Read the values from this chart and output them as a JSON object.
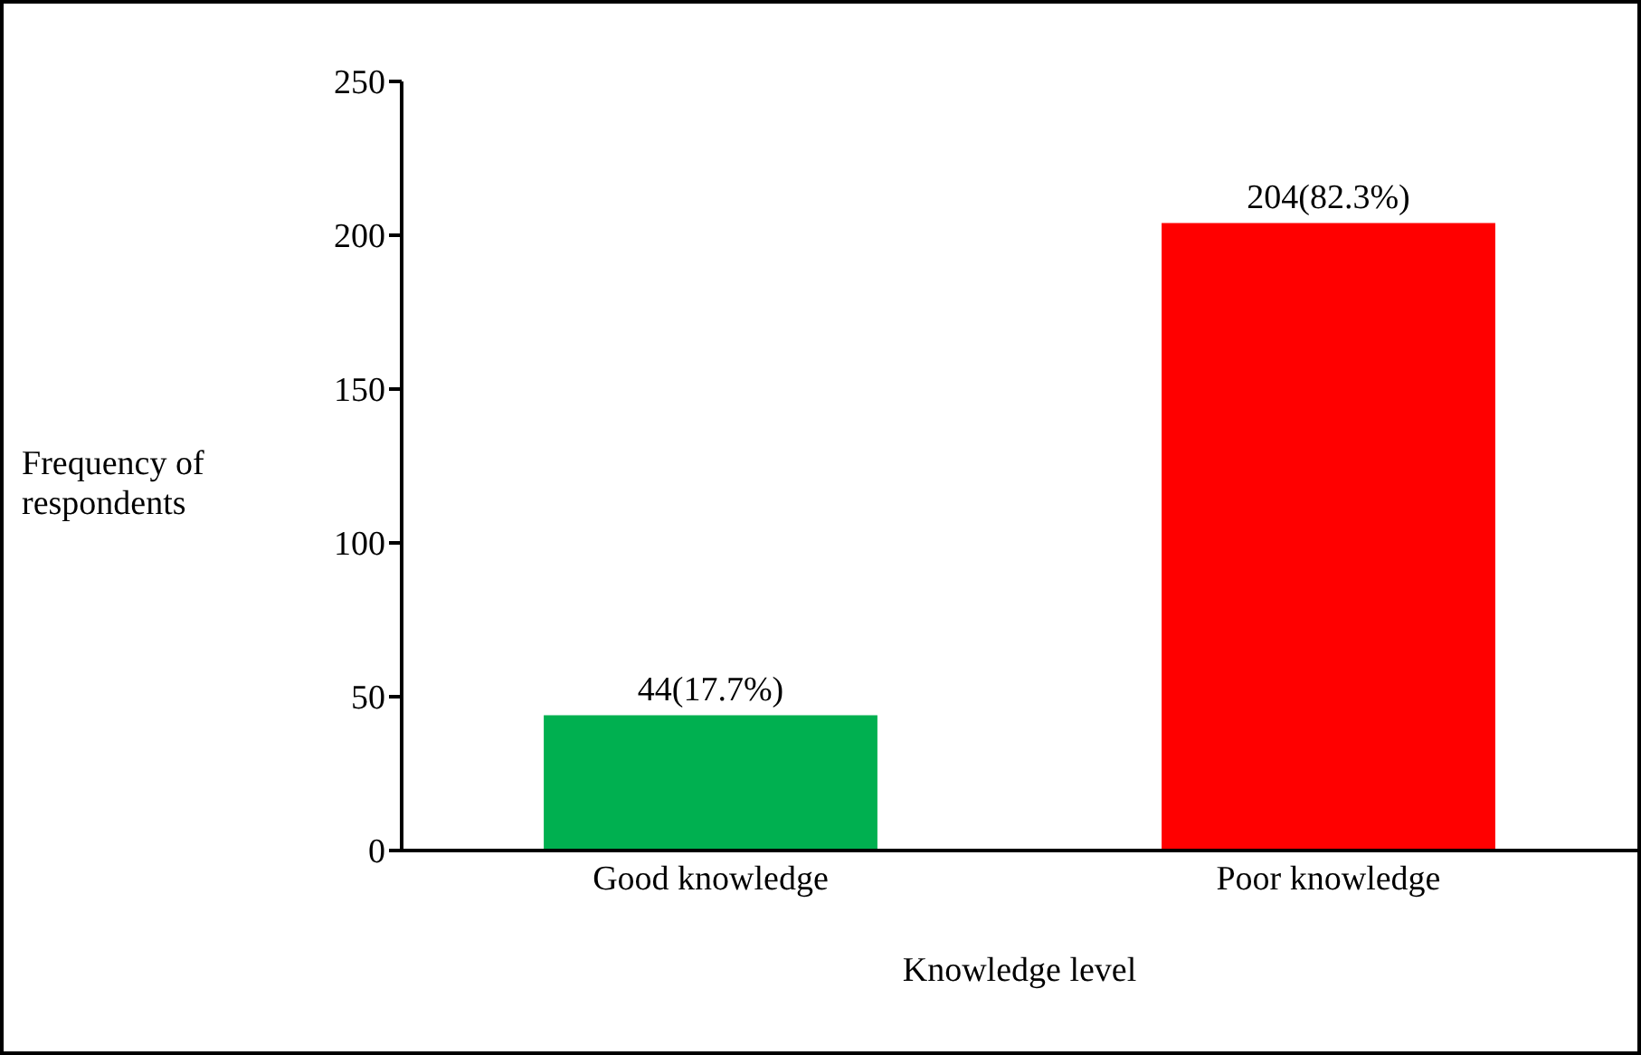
{
  "chart_data": {
    "type": "bar",
    "xlabel": "Knowledge level",
    "ylabel": "Frequency of respondents",
    "categories": [
      "Good knowledge",
      "Poor knowledge"
    ],
    "values": [
      44,
      204
    ],
    "colors": [
      "#00b050",
      "#ff0000"
    ],
    "value_labels": [
      "44(17.7%)",
      "204(82.3%)"
    ],
    "ylim": [
      0,
      250
    ],
    "yticks": [
      0,
      50,
      100,
      150,
      200,
      250
    ],
    "grid": false,
    "legend": false
  }
}
